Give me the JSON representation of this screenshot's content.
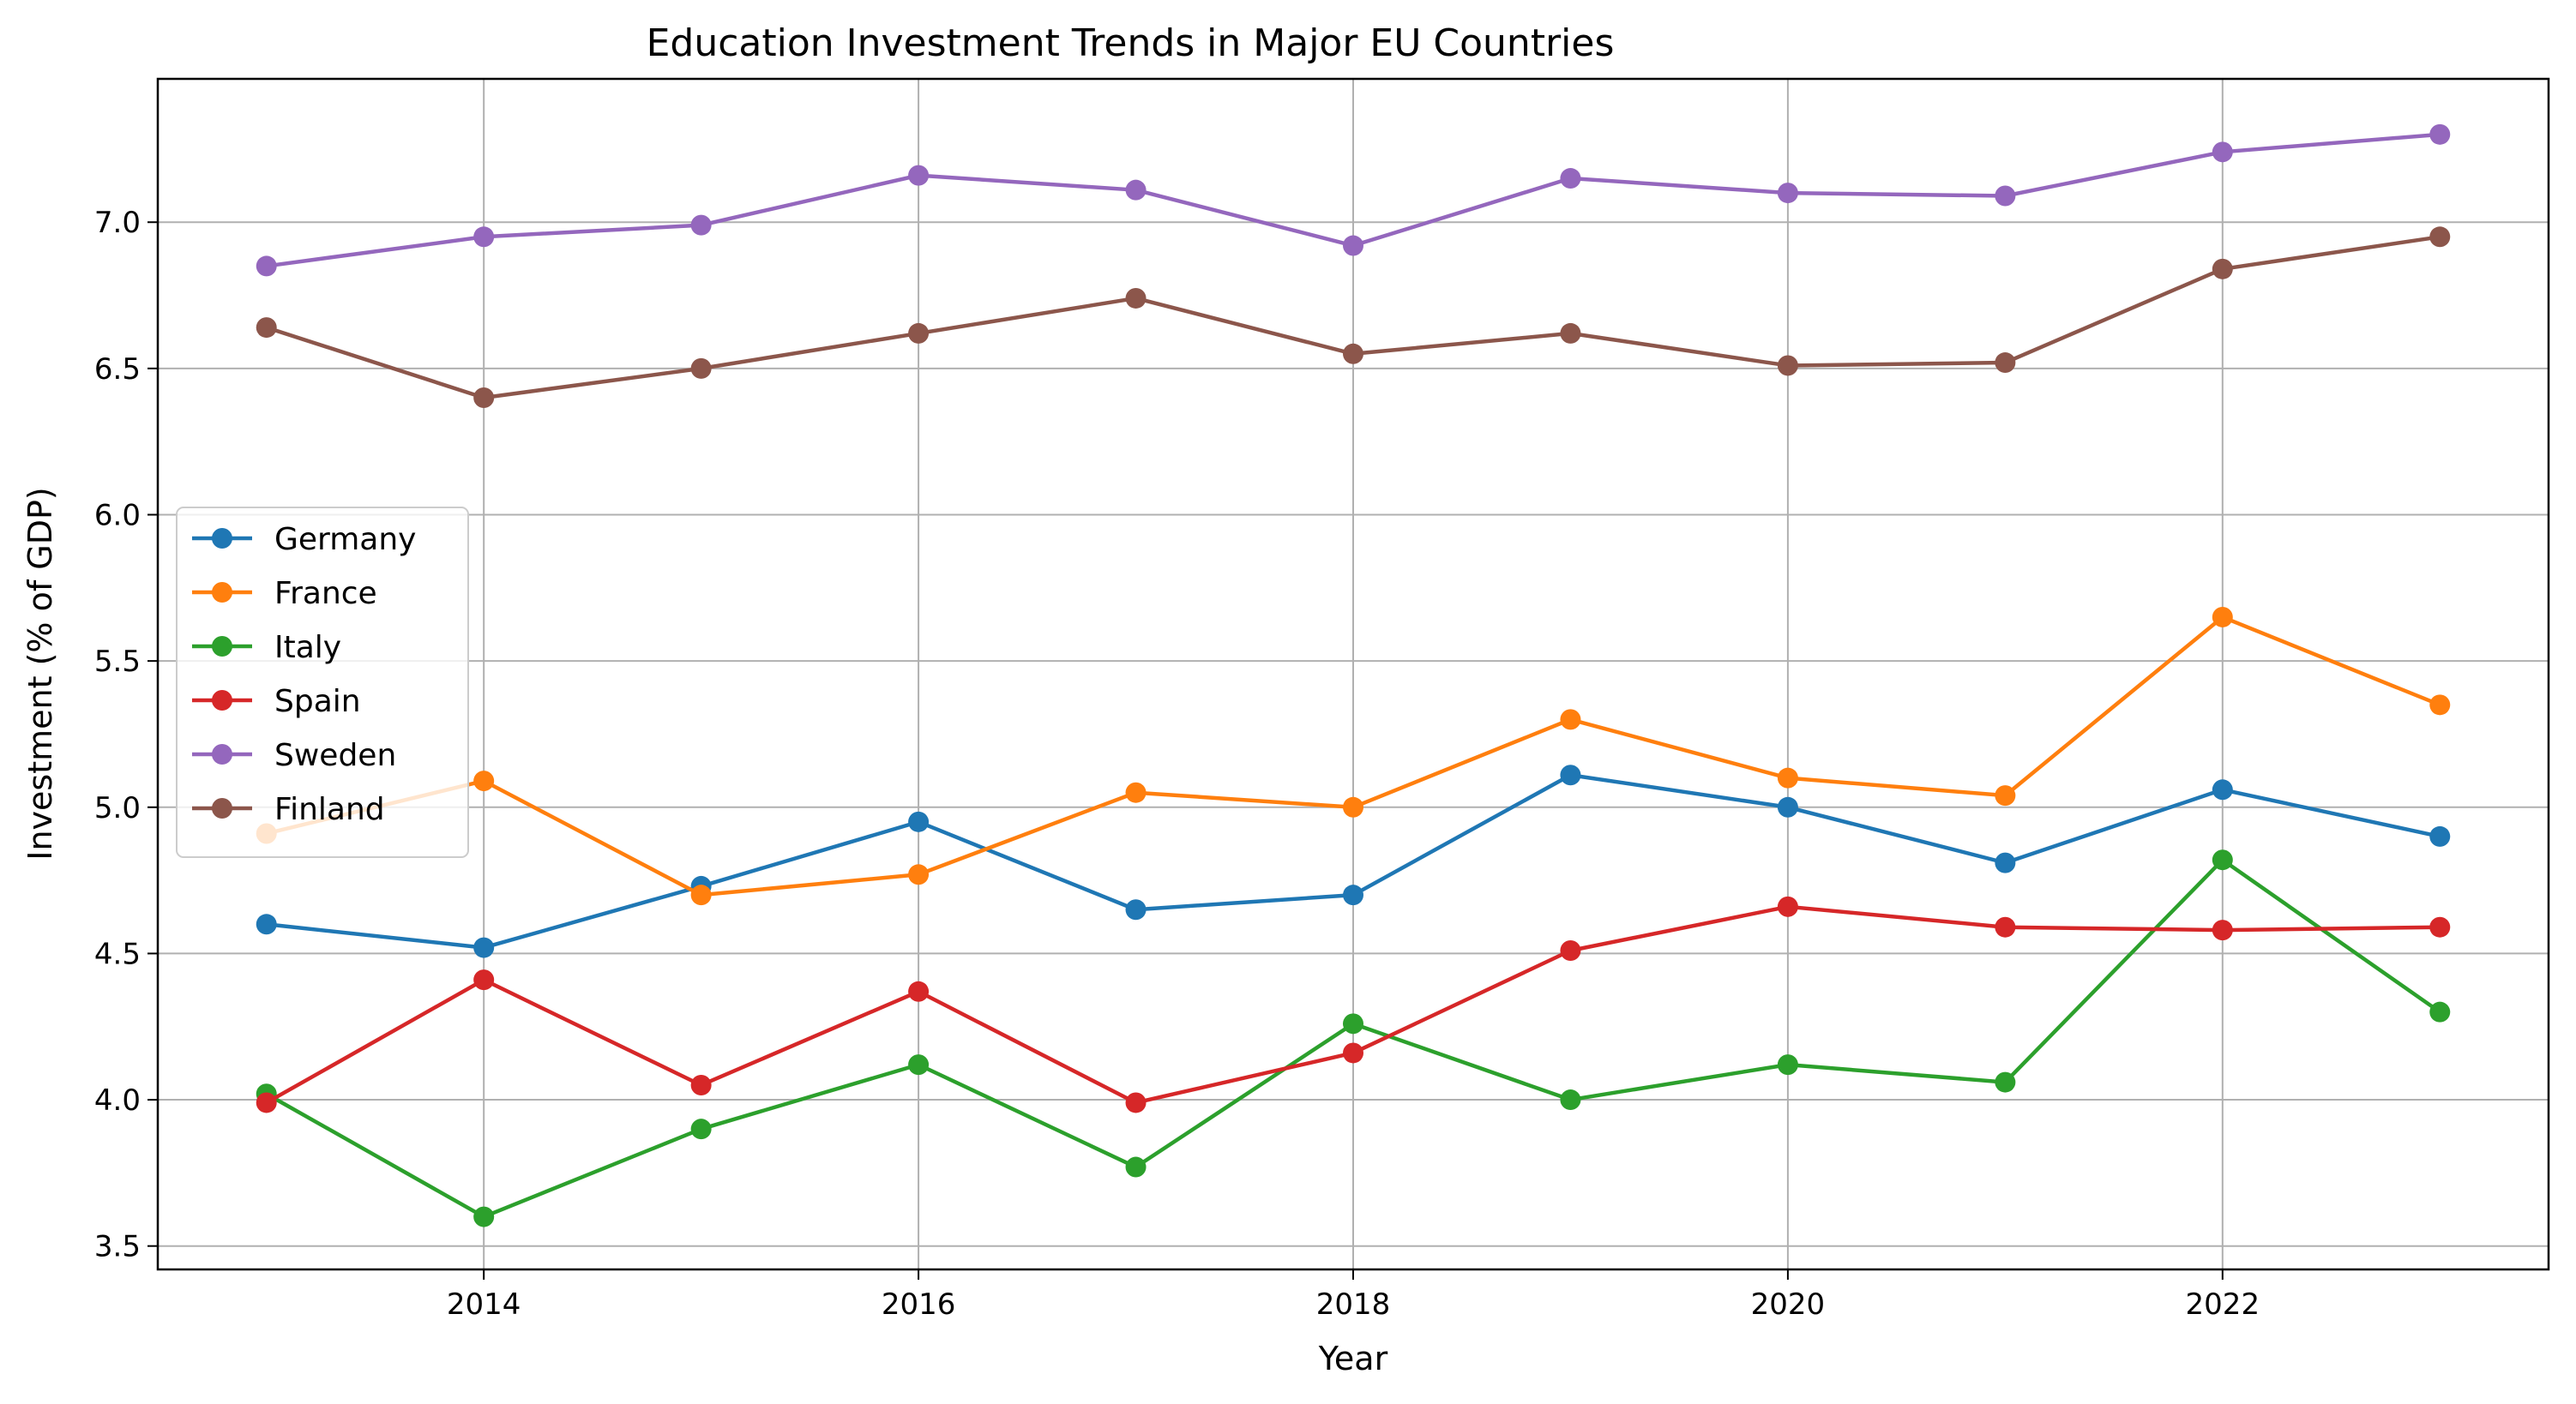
{
  "chart_data": {
    "type": "line",
    "title": "Education Investment Trends in Major EU Countries",
    "xlabel": "Year",
    "ylabel": "Investment (% of GDP)",
    "x": [
      2013,
      2014,
      2015,
      2016,
      2017,
      2018,
      2019,
      2020,
      2021,
      2022,
      2023
    ],
    "xlim": [
      2012.5,
      2023.5
    ],
    "ylim": [
      3.42,
      7.49
    ],
    "xticks": [
      2014,
      2016,
      2018,
      2020,
      2022
    ],
    "yticks": [
      3.5,
      4.0,
      4.5,
      5.0,
      5.5,
      6.0,
      6.5,
      7.0
    ],
    "grid": true,
    "legend_position": "center-left",
    "series": [
      {
        "name": "Germany",
        "color": "#1f77b4",
        "values": [
          4.6,
          4.52,
          4.73,
          4.95,
          4.65,
          4.7,
          5.11,
          5.0,
          4.81,
          5.06,
          4.9
        ]
      },
      {
        "name": "France",
        "color": "#ff7f0e",
        "values": [
          4.91,
          5.09,
          4.7,
          4.77,
          5.05,
          5.0,
          5.3,
          5.1,
          5.04,
          5.65,
          5.35
        ]
      },
      {
        "name": "Italy",
        "color": "#2ca02c",
        "values": [
          4.02,
          3.6,
          3.9,
          4.12,
          3.77,
          4.26,
          4.0,
          4.12,
          4.06,
          4.82,
          4.3
        ]
      },
      {
        "name": "Spain",
        "color": "#d62728",
        "values": [
          3.99,
          4.41,
          4.05,
          4.37,
          3.99,
          4.16,
          4.51,
          4.66,
          4.59,
          4.58,
          4.59
        ]
      },
      {
        "name": "Sweden",
        "color": "#9467bd",
        "values": [
          6.85,
          6.95,
          6.99,
          7.16,
          7.11,
          6.92,
          7.15,
          7.1,
          7.09,
          7.24,
          7.3
        ]
      },
      {
        "name": "Finland",
        "color": "#8c564b",
        "values": [
          6.64,
          6.4,
          6.5,
          6.62,
          6.74,
          6.55,
          6.62,
          6.51,
          6.52,
          6.84,
          6.95
        ]
      }
    ]
  }
}
